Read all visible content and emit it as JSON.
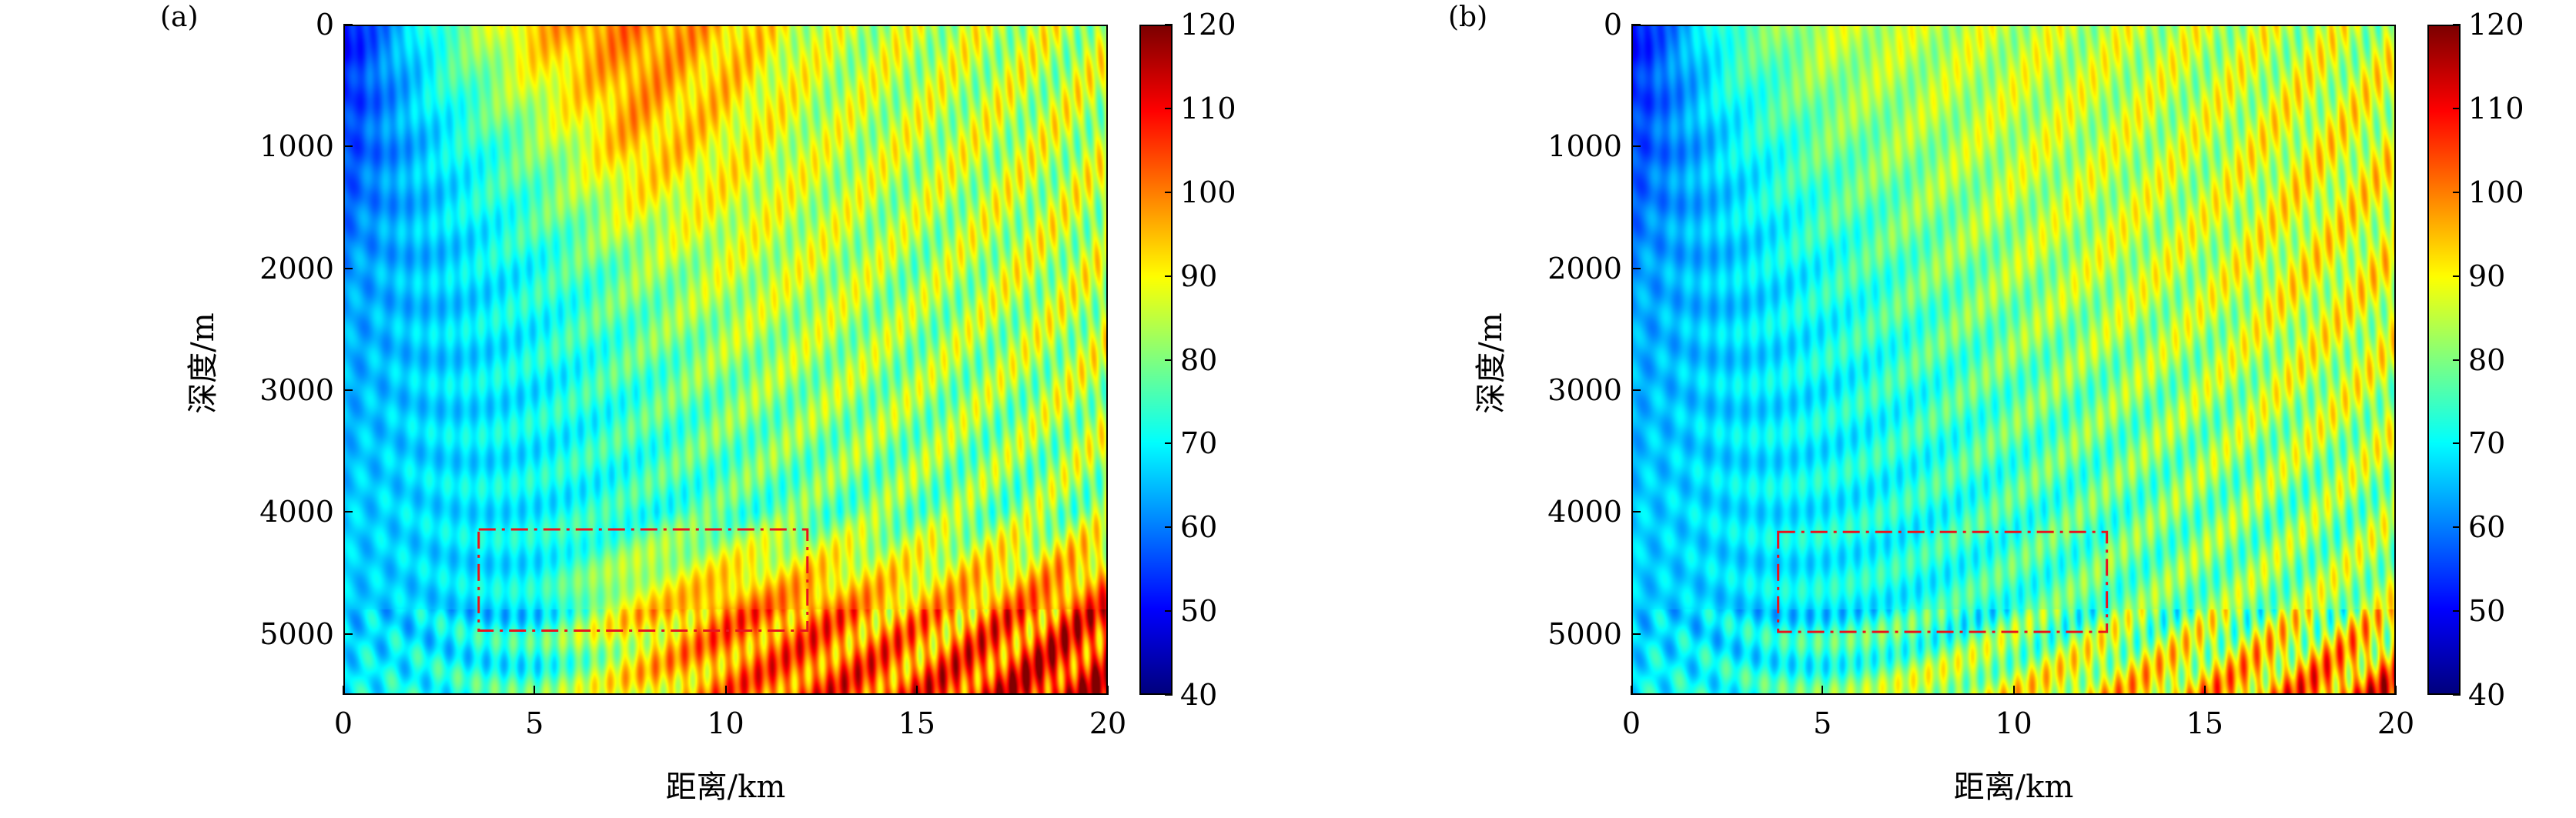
{
  "chart_data": [
    {
      "type": "heatmap",
      "panel_label": "(a)",
      "xlabel": "距离/km",
      "ylabel": "深度/m",
      "xlim": [
        0,
        20
      ],
      "ylim": [
        5500,
        0
      ],
      "xticks": [
        "0",
        "5",
        "10",
        "15",
        "20"
      ],
      "yticks": [
        "0",
        "1000",
        "2000",
        "3000",
        "4000",
        "5000"
      ],
      "colorbar": {
        "range": [
          40,
          120
        ],
        "ticks": [
          "120",
          "110",
          "100",
          "90",
          "80",
          "70",
          "60",
          "50",
          "40"
        ],
        "colormap": "jet"
      },
      "grid_x_km": [
        0,
        2.5,
        5,
        7.5,
        10,
        12.5,
        15,
        17.5,
        20
      ],
      "grid_depth_m": [
        0,
        1000,
        2000,
        3000,
        4000,
        4800,
        5500
      ],
      "values": [
        [
          50,
          75,
          95,
          100,
          95,
          85,
          85,
          85,
          85
        ],
        [
          55,
          68,
          80,
          95,
          90,
          85,
          85,
          85,
          85
        ],
        [
          62,
          66,
          72,
          80,
          85,
          85,
          82,
          85,
          85
        ],
        [
          64,
          67,
          70,
          75,
          80,
          82,
          82,
          82,
          85
        ],
        [
          66,
          68,
          70,
          73,
          76,
          78,
          80,
          80,
          82
        ],
        [
          66,
          67,
          70,
          90,
          100,
          100,
          95,
          100,
          105
        ],
        [
          70,
          72,
          75,
          90,
          100,
          105,
          105,
          110,
          112
        ]
      ],
      "annotation_box": {
        "style": "red dash-dot",
        "x_km": [
          3.5,
          12.1
        ],
        "depth_m": [
          4130,
          4960
        ],
        "color": "#e8141e"
      }
    },
    {
      "type": "heatmap",
      "panel_label": "(b)",
      "xlabel": "距离/km",
      "ylabel": "深度/m",
      "xlim": [
        0,
        20
      ],
      "ylim": [
        5500,
        0
      ],
      "xticks": [
        "0",
        "5",
        "10",
        "15",
        "20"
      ],
      "yticks": [
        "0",
        "1000",
        "2000",
        "3000",
        "4000",
        "5000"
      ],
      "colorbar": {
        "range": [
          40,
          120
        ],
        "ticks": [
          "120",
          "110",
          "100",
          "90",
          "80",
          "70",
          "60",
          "50",
          "40"
        ],
        "colormap": "jet"
      },
      "grid_x_km": [
        0,
        2.5,
        5,
        7.5,
        10,
        12.5,
        15,
        17.5,
        20
      ],
      "grid_depth_m": [
        0,
        1000,
        2000,
        3000,
        4000,
        4800,
        5500
      ],
      "values": [
        [
          50,
          75,
          85,
          85,
          85,
          85,
          85,
          85,
          85
        ],
        [
          55,
          68,
          78,
          82,
          85,
          85,
          85,
          88,
          88
        ],
        [
          62,
          66,
          72,
          78,
          82,
          85,
          85,
          88,
          88
        ],
        [
          64,
          67,
          70,
          74,
          78,
          80,
          82,
          85,
          85
        ],
        [
          66,
          68,
          70,
          72,
          75,
          77,
          80,
          80,
          82
        ],
        [
          66,
          67,
          70,
          72,
          75,
          78,
          80,
          82,
          85
        ],
        [
          70,
          72,
          76,
          85,
          88,
          92,
          95,
          100,
          106
        ]
      ],
      "annotation_box": {
        "style": "red dash-dot",
        "x_km": [
          3.8,
          12.4
        ],
        "depth_m": [
          4150,
          4970
        ],
        "color": "#e8141e"
      }
    }
  ]
}
